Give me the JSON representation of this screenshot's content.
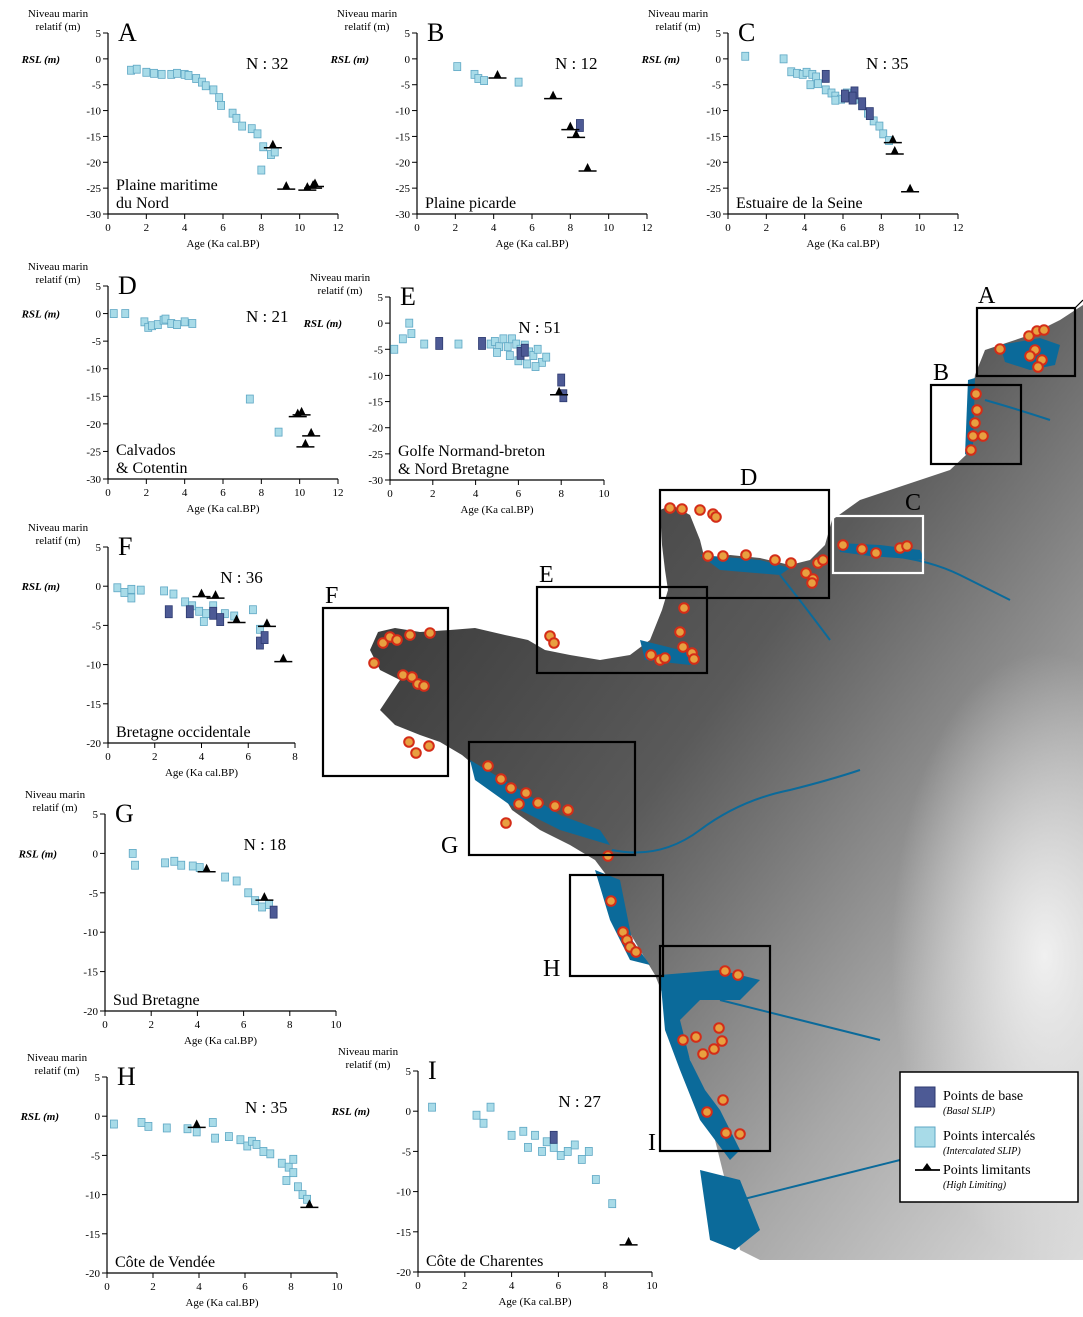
{
  "colors": {
    "basal_fill": "#4d5a95",
    "intercalated_fill": "#a8dbe8",
    "intercalated_stroke": "#5ea7c4",
    "limiting": "#000000",
    "sea": "#0b6a9a",
    "site_marker": "#e8a040",
    "site_marker_stroke": "#d42d18"
  },
  "common": {
    "ylabel_line1": "Niveau marin",
    "ylabel_line2": "relatif (m)",
    "rsl_label": "RSL (m)",
    "xlabel": "Age (Ka cal.BP)"
  },
  "legend": {
    "basal": "Points de base",
    "basal_sub": "(Basal SLIP)",
    "intercalated": "Points intercalés",
    "intercalated_sub": "(Intercalated SLIP)",
    "limiting": "Points limitants",
    "limiting_sub": "(High Limiting)"
  },
  "map_labels": [
    "A",
    "B",
    "C",
    "D",
    "E",
    "F",
    "G",
    "H",
    "I"
  ],
  "chart_data": [
    {
      "type": "scatter",
      "letter": "A",
      "n_label": "N : 32",
      "region_line1": "Plaine maritime",
      "region_line2": "du Nord",
      "xlim": [
        0,
        12
      ],
      "ylim": [
        -30,
        5
      ],
      "xticks": [
        0,
        2,
        4,
        6,
        8,
        10,
        12
      ],
      "yticks": [
        5,
        0,
        -5,
        -10,
        -15,
        -20,
        -25,
        -30
      ],
      "intercalated": [
        [
          1.2,
          -2.2
        ],
        [
          1.5,
          -2.0
        ],
        [
          2.0,
          -2.6
        ],
        [
          2.4,
          -2.8
        ],
        [
          2.8,
          -3.0
        ],
        [
          3.3,
          -3.0
        ],
        [
          3.6,
          -2.8
        ],
        [
          4.0,
          -3.0
        ],
        [
          4.2,
          -3.2
        ],
        [
          4.6,
          -3.8
        ],
        [
          4.9,
          -4.5
        ],
        [
          5.1,
          -5.2
        ],
        [
          5.5,
          -6.0
        ],
        [
          5.8,
          -7.5
        ],
        [
          5.9,
          -9.0
        ],
        [
          6.5,
          -10.5
        ],
        [
          6.7,
          -11.5
        ],
        [
          7.0,
          -13.0
        ],
        [
          7.5,
          -13.5
        ],
        [
          7.8,
          -14.5
        ],
        [
          8.1,
          -17.0
        ],
        [
          8.5,
          -18.5
        ],
        [
          8.7,
          -18.0
        ],
        [
          8.0,
          -21.5
        ]
      ],
      "basal": [],
      "limiting": [
        [
          8.6,
          -17.0
        ],
        [
          9.3,
          -25.0
        ],
        [
          10.4,
          -25.2
        ],
        [
          10.7,
          -24.8
        ],
        [
          10.8,
          -24.5
        ]
      ]
    },
    {
      "type": "scatter",
      "letter": "B",
      "n_label": "N : 12",
      "region_line1": "Plaine picarde",
      "region_line2": "",
      "xlim": [
        0,
        12
      ],
      "ylim": [
        -30,
        5
      ],
      "xticks": [
        0,
        2,
        4,
        6,
        8,
        10,
        12
      ],
      "yticks": [
        5,
        0,
        -5,
        -10,
        -15,
        -20,
        -25,
        -30
      ],
      "intercalated": [
        [
          2.1,
          -1.5
        ],
        [
          3.0,
          -3.0
        ],
        [
          3.2,
          -3.8
        ],
        [
          3.5,
          -4.2
        ],
        [
          5.3,
          -4.5
        ]
      ],
      "basal": [
        [
          8.5,
          -12.5
        ]
      ],
      "limiting": [
        [
          4.2,
          -3.5
        ],
        [
          7.1,
          -7.5
        ],
        [
          8.0,
          -13.5
        ],
        [
          8.3,
          -15.0
        ],
        [
          8.9,
          -21.5
        ]
      ]
    },
    {
      "type": "scatter",
      "letter": "C",
      "n_label": "N : 35",
      "region_line1": "Estuaire de la Seine",
      "region_line2": "",
      "xlim": [
        0,
        12
      ],
      "ylim": [
        -30,
        5
      ],
      "xticks": [
        0,
        2,
        4,
        6,
        8,
        10,
        12
      ],
      "yticks": [
        5,
        0,
        -5,
        -10,
        -15,
        -20,
        -25,
        -30
      ],
      "intercalated": [
        [
          0.9,
          0.5
        ],
        [
          2.9,
          0.0
        ],
        [
          3.3,
          -2.5
        ],
        [
          3.6,
          -2.8
        ],
        [
          3.9,
          -3.0
        ],
        [
          4.1,
          -2.6
        ],
        [
          4.4,
          -3.0
        ],
        [
          4.6,
          -3.5
        ],
        [
          4.3,
          -5.0
        ],
        [
          4.7,
          -4.8
        ],
        [
          5.1,
          -6.0
        ],
        [
          5.4,
          -6.6
        ],
        [
          5.6,
          -7.2
        ],
        [
          5.9,
          -7.8
        ],
        [
          6.2,
          -6.6
        ],
        [
          6.6,
          -7.8
        ],
        [
          7.0,
          -9.0
        ],
        [
          7.3,
          -10.5
        ],
        [
          7.6,
          -12.0
        ],
        [
          7.9,
          -13.0
        ],
        [
          8.1,
          -14.5
        ],
        [
          8.4,
          -15.8
        ],
        [
          5.6,
          -8.0
        ]
      ],
      "basal": [
        [
          6.1,
          -6.8
        ],
        [
          6.6,
          -6.2
        ],
        [
          5.1,
          -3.0
        ],
        [
          6.5,
          -7.2
        ],
        [
          7.0,
          -8.3
        ],
        [
          7.4,
          -10.2
        ]
      ],
      "limiting": [
        [
          8.6,
          -16.0
        ],
        [
          8.7,
          -18.2
        ],
        [
          9.5,
          -25.5
        ]
      ]
    },
    {
      "type": "scatter",
      "letter": "D",
      "n_label": "N : 21",
      "region_line1": "Calvados",
      "region_line2": "& Cotentin",
      "xlim": [
        0,
        12
      ],
      "ylim": [
        -30,
        5
      ],
      "xticks": [
        0,
        2,
        4,
        6,
        8,
        10,
        12
      ],
      "yticks": [
        5,
        0,
        -5,
        -10,
        -15,
        -20,
        -25,
        -30
      ],
      "intercalated": [
        [
          0.3,
          0.0
        ],
        [
          0.9,
          0.0
        ],
        [
          1.9,
          -1.5
        ],
        [
          2.1,
          -2.5
        ],
        [
          2.3,
          -2.2
        ],
        [
          2.6,
          -2.0
        ],
        [
          2.9,
          -1.2
        ],
        [
          3.0,
          -1.0
        ],
        [
          3.3,
          -1.8
        ],
        [
          3.6,
          -2.0
        ],
        [
          4.0,
          -1.5
        ],
        [
          4.4,
          -1.8
        ],
        [
          7.4,
          -15.5
        ],
        [
          8.9,
          -21.5
        ]
      ],
      "basal": [],
      "limiting": [
        [
          9.9,
          -18.5
        ],
        [
          10.1,
          -18.2
        ],
        [
          10.6,
          -22.0
        ],
        [
          10.3,
          -24.0
        ]
      ]
    },
    {
      "type": "scatter",
      "letter": "E",
      "n_label": "N : 51",
      "region_line1": "Golfe Normand-breton",
      "region_line2": "& Nord Bretagne",
      "xlim": [
        0,
        10
      ],
      "ylim": [
        -30,
        5
      ],
      "xticks": [
        0,
        2,
        4,
        6,
        8,
        10
      ],
      "yticks": [
        5,
        0,
        -5,
        -10,
        -15,
        -20,
        -25,
        -30
      ],
      "intercalated": [
        [
          0.2,
          -5.0
        ],
        [
          0.6,
          -3.0
        ],
        [
          0.9,
          0.0
        ],
        [
          1.0,
          -2.0
        ],
        [
          1.6,
          -4.0
        ],
        [
          3.2,
          -4.0
        ],
        [
          4.7,
          -4.0
        ],
        [
          4.9,
          -3.5
        ],
        [
          5.1,
          -4.5
        ],
        [
          5.3,
          -3.0
        ],
        [
          5.5,
          -4.5
        ],
        [
          5.7,
          -3.0
        ],
        [
          5.9,
          -4.0
        ],
        [
          6.1,
          -5.0
        ],
        [
          6.3,
          -4.2
        ],
        [
          6.5,
          -5.5
        ],
        [
          6.7,
          -6.2
        ],
        [
          6.9,
          -5.0
        ],
        [
          7.1,
          -7.5
        ],
        [
          7.3,
          -6.5
        ],
        [
          5.0,
          -5.6
        ],
        [
          5.6,
          -6.2
        ],
        [
          6.0,
          -7.2
        ],
        [
          6.4,
          -7.8
        ],
        [
          6.8,
          -8.3
        ]
      ],
      "basal": [
        [
          2.3,
          -3.5
        ],
        [
          4.3,
          -3.5
        ],
        [
          6.1,
          -5.4
        ],
        [
          6.3,
          -4.8
        ],
        [
          8.0,
          -10.5
        ],
        [
          8.1,
          -13.5
        ]
      ],
      "limiting": [
        [
          7.9,
          -13.5
        ]
      ]
    },
    {
      "type": "scatter",
      "letter": "F",
      "n_label": "N : 36",
      "region_line1": "Bretagne occidentale",
      "region_line2": "",
      "xlim": [
        0,
        8
      ],
      "ylim": [
        -20,
        5
      ],
      "xticks": [
        0,
        2,
        4,
        6,
        8
      ],
      "yticks": [
        5,
        0,
        -5,
        -10,
        -15,
        -20
      ],
      "intercalated": [
        [
          0.4,
          -0.2
        ],
        [
          0.7,
          -0.8
        ],
        [
          1.0,
          -1.5
        ],
        [
          1.0,
          -0.4
        ],
        [
          1.4,
          -0.5
        ],
        [
          2.4,
          -0.6
        ],
        [
          2.8,
          -1.0
        ],
        [
          3.3,
          -2.0
        ],
        [
          3.6,
          -2.5
        ],
        [
          3.9,
          -3.2
        ],
        [
          4.2,
          -3.5
        ],
        [
          4.5,
          -2.5
        ],
        [
          4.1,
          -4.5
        ],
        [
          5.0,
          -3.5
        ],
        [
          5.4,
          -3.8
        ],
        [
          6.2,
          -3.0
        ],
        [
          6.5,
          -5.5
        ]
      ],
      "basal": [
        [
          2.6,
          -3.0
        ],
        [
          4.5,
          -3.2
        ],
        [
          4.8,
          -4.0
        ],
        [
          6.5,
          -7.0
        ],
        [
          6.7,
          -6.3
        ],
        [
          3.5,
          -3.0
        ]
      ],
      "limiting": [
        [
          4.0,
          -1.2
        ],
        [
          4.6,
          -1.4
        ],
        [
          5.5,
          -4.5
        ],
        [
          6.8,
          -5.0
        ],
        [
          7.5,
          -9.5
        ]
      ]
    },
    {
      "type": "scatter",
      "letter": "G",
      "n_label": "N : 18",
      "region_line1": "Sud Bretagne",
      "region_line2": "",
      "xlim": [
        0,
        10
      ],
      "ylim": [
        -20,
        5
      ],
      "xticks": [
        0,
        2,
        4,
        6,
        8,
        10
      ],
      "yticks": [
        5,
        0,
        -5,
        -10,
        -15,
        -20
      ],
      "intercalated": [
        [
          1.2,
          0.0
        ],
        [
          1.3,
          -1.5
        ],
        [
          2.6,
          -1.2
        ],
        [
          3.0,
          -1.0
        ],
        [
          3.3,
          -1.5
        ],
        [
          3.8,
          -1.6
        ],
        [
          4.1,
          -1.8
        ],
        [
          5.2,
          -3.0
        ],
        [
          5.7,
          -3.5
        ],
        [
          6.2,
          -5.0
        ],
        [
          6.5,
          -6.0
        ],
        [
          6.8,
          -6.8
        ],
        [
          7.1,
          -6.5
        ]
      ],
      "basal": [
        [
          7.3,
          -7.2
        ]
      ],
      "limiting": [
        [
          4.4,
          -2.2
        ],
        [
          6.9,
          -5.8
        ]
      ]
    },
    {
      "type": "scatter",
      "letter": "H",
      "n_label": "N : 35",
      "region_line1": "Côte de Vendée",
      "region_line2": "",
      "xlim": [
        0,
        10
      ],
      "ylim": [
        -20,
        5
      ],
      "xticks": [
        0,
        2,
        4,
        6,
        8,
        10
      ],
      "yticks": [
        5,
        0,
        -5,
        -10,
        -15,
        -20
      ],
      "intercalated": [
        [
          0.3,
          -1.0
        ],
        [
          1.5,
          -0.8
        ],
        [
          1.8,
          -1.3
        ],
        [
          2.6,
          -1.5
        ],
        [
          3.5,
          -1.6
        ],
        [
          3.9,
          -2.0
        ],
        [
          4.6,
          -0.8
        ],
        [
          4.7,
          -2.8
        ],
        [
          5.3,
          -2.6
        ],
        [
          5.8,
          -3.0
        ],
        [
          6.1,
          -3.8
        ],
        [
          6.3,
          -3.2
        ],
        [
          6.5,
          -3.6
        ],
        [
          6.8,
          -4.5
        ],
        [
          7.1,
          -4.8
        ],
        [
          7.6,
          -6.0
        ],
        [
          7.9,
          -6.5
        ],
        [
          8.1,
          -7.2
        ],
        [
          7.8,
          -8.2
        ],
        [
          8.3,
          -9.0
        ],
        [
          8.5,
          -10.0
        ],
        [
          8.7,
          -10.6
        ],
        [
          8.1,
          -5.5
        ]
      ],
      "basal": [],
      "limiting": [
        [
          3.9,
          -1.3
        ],
        [
          8.8,
          -11.5
        ]
      ]
    },
    {
      "type": "scatter",
      "letter": "I",
      "n_label": "N : 27",
      "region_line1": "Côte de Charentes",
      "region_line2": "",
      "xlim": [
        0,
        10
      ],
      "ylim": [
        -20,
        5
      ],
      "xticks": [
        0,
        2,
        4,
        6,
        8,
        10
      ],
      "yticks": [
        5,
        0,
        -5,
        -10,
        -15,
        -20
      ],
      "intercalated": [
        [
          0.6,
          0.5
        ],
        [
          2.5,
          -0.5
        ],
        [
          2.8,
          -1.5
        ],
        [
          3.1,
          0.5
        ],
        [
          4.0,
          -3.0
        ],
        [
          4.5,
          -2.5
        ],
        [
          4.7,
          -4.5
        ],
        [
          5.0,
          -3.0
        ],
        [
          5.3,
          -5.0
        ],
        [
          5.5,
          -3.8
        ],
        [
          5.8,
          -4.5
        ],
        [
          6.1,
          -5.5
        ],
        [
          6.4,
          -5.0
        ],
        [
          6.7,
          -4.2
        ],
        [
          7.0,
          -6.0
        ],
        [
          7.3,
          -5.0
        ],
        [
          7.6,
          -8.5
        ],
        [
          8.3,
          -11.5
        ]
      ],
      "basal": [
        [
          5.8,
          -3.0
        ]
      ],
      "limiting": [
        [
          9.0,
          -16.5
        ]
      ]
    }
  ]
}
